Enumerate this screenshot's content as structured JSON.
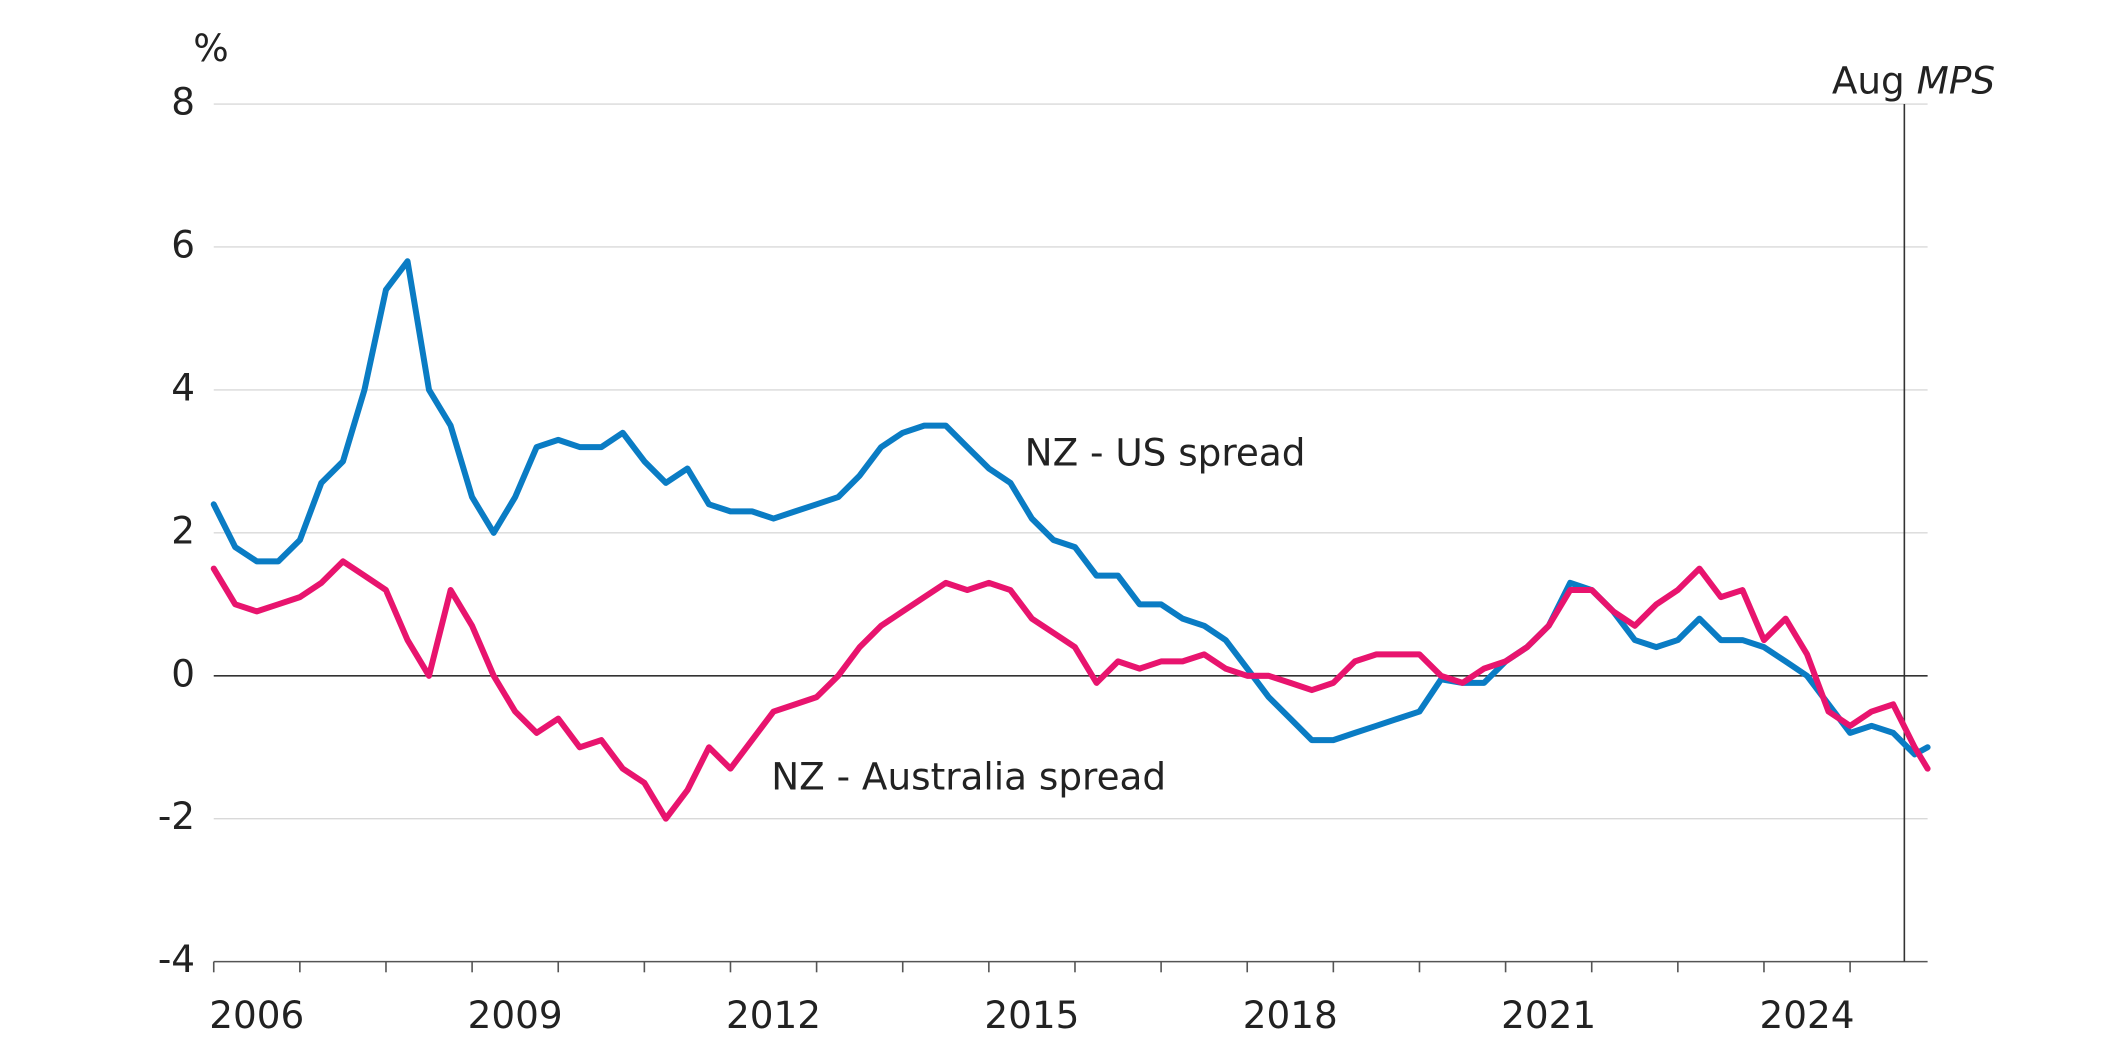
{
  "chart_data": {
    "type": "line",
    "y_label": "%",
    "x": [
      2006.0,
      2006.25,
      2006.5,
      2006.75,
      2007.0,
      2007.25,
      2007.5,
      2007.75,
      2008.0,
      2008.25,
      2008.5,
      2008.75,
      2009.0,
      2009.25,
      2009.5,
      2009.75,
      2010.0,
      2010.25,
      2010.5,
      2010.75,
      2011.0,
      2011.25,
      2011.5,
      2011.75,
      2012.0,
      2012.25,
      2012.5,
      2012.75,
      2013.0,
      2013.25,
      2013.5,
      2013.75,
      2014.0,
      2014.25,
      2014.5,
      2014.75,
      2015.0,
      2015.25,
      2015.5,
      2015.75,
      2016.0,
      2016.25,
      2016.5,
      2016.75,
      2017.0,
      2017.25,
      2017.5,
      2017.75,
      2018.0,
      2018.25,
      2018.5,
      2018.75,
      2019.0,
      2019.25,
      2019.5,
      2019.75,
      2020.0,
      2020.25,
      2020.5,
      2020.75,
      2021.0,
      2021.25,
      2021.5,
      2021.75,
      2022.0,
      2022.25,
      2022.5,
      2022.75,
      2023.0,
      2023.25,
      2023.5,
      2023.75,
      2024.0,
      2024.25,
      2024.5,
      2024.75,
      2025.0,
      2025.25,
      2025.5,
      2025.75,
      2025.9
    ],
    "series": [
      {
        "name": "NZ - US spread",
        "color": "#0a7cc4",
        "values": [
          2.4,
          1.8,
          1.6,
          1.6,
          1.9,
          2.7,
          3.0,
          4.0,
          5.4,
          5.8,
          4.0,
          3.5,
          2.5,
          2.0,
          2.5,
          3.2,
          3.3,
          3.2,
          3.2,
          3.4,
          3.0,
          2.7,
          2.9,
          2.4,
          2.3,
          2.3,
          2.2,
          2.3,
          2.4,
          2.5,
          2.8,
          3.2,
          3.4,
          3.5,
          3.5,
          3.2,
          2.9,
          2.7,
          2.2,
          1.9,
          1.8,
          1.4,
          1.4,
          1.0,
          1.0,
          0.8,
          0.7,
          0.5,
          0.1,
          -0.3,
          -0.6,
          -0.9,
          -0.9,
          -0.8,
          -0.7,
          -0.6,
          -0.5,
          -0.05,
          -0.1,
          -0.1,
          0.2,
          0.4,
          0.7,
          1.3,
          1.2,
          0.9,
          0.5,
          0.4,
          0.5,
          0.8,
          0.5,
          0.5,
          0.4,
          0.2,
          0.0,
          -0.4,
          -0.8,
          -0.7,
          -0.8,
          -1.1,
          -1.0
        ]
      },
      {
        "name": "NZ - Australia spread",
        "color": "#e8146e",
        "values": [
          1.5,
          1.0,
          0.9,
          1.0,
          1.1,
          1.3,
          1.6,
          1.4,
          1.2,
          0.5,
          0.0,
          1.2,
          0.7,
          0.0,
          -0.5,
          -0.8,
          -0.6,
          -1.0,
          -0.9,
          -1.3,
          -1.5,
          -2.0,
          -1.6,
          -1.0,
          -1.3,
          -0.9,
          -0.5,
          -0.4,
          -0.3,
          0.0,
          0.4,
          0.7,
          0.9,
          1.1,
          1.3,
          1.2,
          1.3,
          1.2,
          0.8,
          0.6,
          0.4,
          -0.1,
          0.2,
          0.1,
          0.2,
          0.2,
          0.3,
          0.1,
          0.0,
          0.0,
          -0.1,
          -0.2,
          -0.1,
          0.2,
          0.3,
          0.3,
          0.3,
          0.0,
          -0.1,
          0.1,
          0.2,
          0.4,
          0.7,
          1.2,
          1.2,
          0.9,
          0.7,
          1.0,
          1.2,
          1.5,
          1.1,
          1.2,
          0.5,
          0.8,
          0.3,
          -0.5,
          -0.7,
          -0.5,
          -0.4,
          -1.0,
          -1.3
        ]
      }
    ],
    "xlim": [
      2006,
      2025.9
    ],
    "xticks": [
      {
        "value": 2006.5,
        "label": "2006"
      },
      {
        "value": 2009.5,
        "label": "2009"
      },
      {
        "value": 2012.5,
        "label": "2012"
      },
      {
        "value": 2015.5,
        "label": "2015"
      },
      {
        "value": 2018.5,
        "label": "2018"
      },
      {
        "value": 2021.5,
        "label": "2021"
      },
      {
        "value": 2024.5,
        "label": "2024"
      }
    ],
    "xminor_ticks": [
      2006,
      2007,
      2008,
      2009,
      2010,
      2011,
      2012,
      2013,
      2014,
      2015,
      2016,
      2017,
      2018,
      2019,
      2020,
      2021,
      2022,
      2023,
      2024,
      2025
    ],
    "ylim": [
      -4,
      8
    ],
    "yticks": [
      -4,
      -2,
      0,
      2,
      4,
      6,
      8
    ],
    "grid": true,
    "vline": {
      "x": 2025.63,
      "label": "Aug",
      "label_italic": "MPS"
    }
  }
}
